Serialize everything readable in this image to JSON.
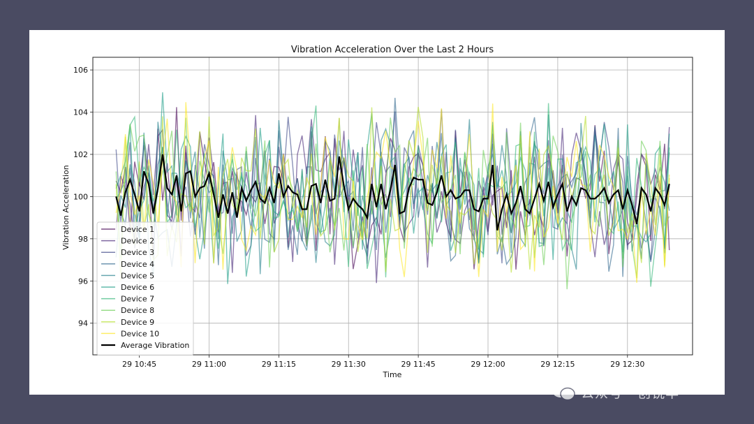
{
  "chart_data": {
    "type": "line",
    "title": "Vibration Acceleration Over the Last 2 Hours",
    "xlabel": "Time",
    "ylabel": "Vibration Acceleration",
    "x_start": "10:40",
    "x_end": "12:39",
    "x_step_minutes": 1,
    "xlim": [
      "10:35",
      "12:44"
    ],
    "ylim": [
      92.5,
      106.6
    ],
    "grid": true,
    "legend_position": "lower-left",
    "xticks": [
      "29 10:45",
      "29 11:00",
      "29 11:15",
      "29 11:30",
      "29 11:45",
      "29 12:00",
      "29 12:15",
      "29 12:30"
    ],
    "yticks": [
      "94",
      "96",
      "98",
      "100",
      "102",
      "104",
      "106"
    ],
    "series": [
      {
        "name": "Device 1",
        "color": "#440154"
      },
      {
        "name": "Device 2",
        "color": "#482878"
      },
      {
        "name": "Device 3",
        "color": "#3e4989"
      },
      {
        "name": "Device 4",
        "color": "#31688e"
      },
      {
        "name": "Device 5",
        "color": "#26828e"
      },
      {
        "name": "Device 6",
        "color": "#1f9e89"
      },
      {
        "name": "Device 7",
        "color": "#35b779"
      },
      {
        "name": "Device 8",
        "color": "#6ece58"
      },
      {
        "name": "Device 9",
        "color": "#b5de2b"
      },
      {
        "name": "Device 10",
        "color": "#fde725"
      }
    ],
    "average": {
      "name": "Average Vibration",
      "color": "#000000",
      "values": [
        100.0,
        99.1,
        100.2,
        100.8,
        100.1,
        99.3,
        101.2,
        100.6,
        99.2,
        100.4,
        102.0,
        100.4,
        100.1,
        101.0,
        99.3,
        101.1,
        101.2,
        100.0,
        100.4,
        100.5,
        101.1,
        100.1,
        99.0,
        100.1,
        99.2,
        100.2,
        99.0,
        100.4,
        99.8,
        100.3,
        100.7,
        99.9,
        99.7,
        100.4,
        99.7,
        101.1,
        100.0,
        100.5,
        100.2,
        100.1,
        99.4,
        99.4,
        100.5,
        100.6,
        99.7,
        100.8,
        99.8,
        99.9,
        101.9,
        100.5,
        99.4,
        99.9,
        99.6,
        99.4,
        99.0,
        100.6,
        99.5,
        100.6,
        99.4,
        100.3,
        101.5,
        99.2,
        99.3,
        100.4,
        100.9,
        100.8,
        100.8,
        99.7,
        99.6,
        100.2,
        101.0,
        100.0,
        100.3,
        99.9,
        100.0,
        100.3,
        100.3,
        99.4,
        99.3,
        99.9,
        99.9,
        101.5,
        98.4,
        99.4,
        100.1,
        99.2,
        99.7,
        100.5,
        99.4,
        99.2,
        99.9,
        100.6,
        99.8,
        100.7,
        99.5,
        100.1,
        100.6,
        99.3,
        100.0,
        99.6,
        100.4,
        100.3,
        99.9,
        99.9,
        100.1,
        100.4,
        99.7,
        100.1,
        100.3,
        99.4,
        100.3,
        99.6,
        98.7,
        100.4,
        100.1,
        99.3,
        100.4,
        100.1,
        99.6,
        100.6
      ]
    }
  }
}
